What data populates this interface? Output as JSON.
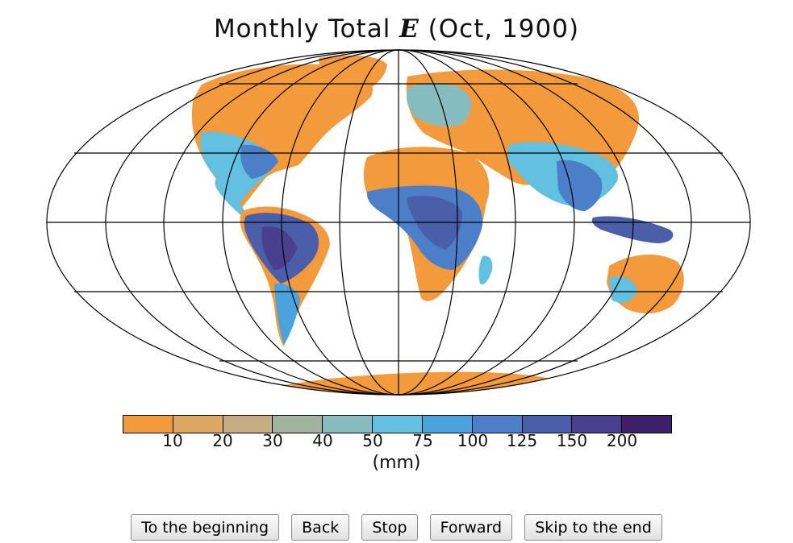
{
  "title": {
    "prefix": "Monthly Total ",
    "variable": "E",
    "suffix": " (Oct, 1900)"
  },
  "legend": {
    "colors": [
      "#f39a3c",
      "#dba762",
      "#c6ad82",
      "#a0b39e",
      "#86bcbf",
      "#62c1e0",
      "#4aa3dc",
      "#4b7fc7",
      "#4a5ea9",
      "#493f8c",
      "#3f2068"
    ],
    "ticks": [
      "10",
      "20",
      "30",
      "40",
      "50",
      "75",
      "100",
      "125",
      "150",
      "200"
    ],
    "unit": "(mm)"
  },
  "controls": {
    "beginning": "To the beginning",
    "back": "Back",
    "stop": "Stop",
    "forward": "Forward",
    "end": "Skip to the end"
  }
}
